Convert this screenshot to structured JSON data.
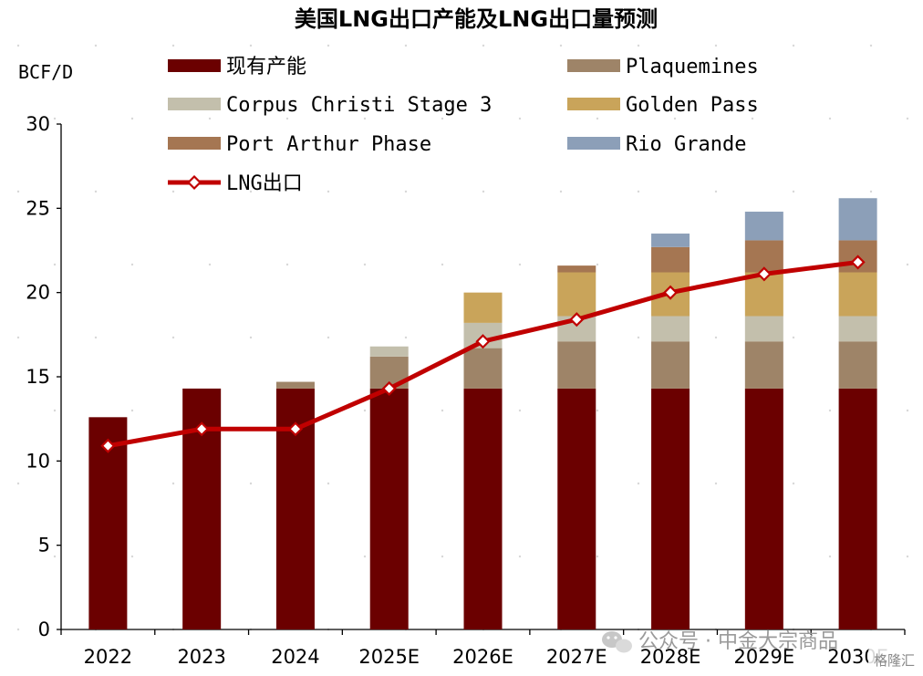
{
  "chart_data": {
    "type": "bar",
    "stacked": true,
    "title": "美国LNG出口产能及LNG出口量预测",
    "unit_label": "BCF/D",
    "categories": [
      "2022",
      "2023",
      "2024",
      "2025E",
      "2026E",
      "2027E",
      "2028E",
      "2029E",
      "2030E"
    ],
    "ylim": [
      0,
      30
    ],
    "yticks": [
      0,
      5,
      10,
      15,
      20,
      25,
      30
    ],
    "grid": false,
    "legend_placement": "top",
    "series": [
      {
        "name": "现有产能",
        "type": "bar",
        "color": "#6b0000",
        "values": [
          12.6,
          14.3,
          14.3,
          14.3,
          14.3,
          14.3,
          14.3,
          14.3,
          14.3
        ]
      },
      {
        "name": "Plaquemines",
        "type": "bar",
        "color": "#9e8468",
        "values": [
          0,
          0,
          0.4,
          1.9,
          2.4,
          2.8,
          2.8,
          2.8,
          2.8
        ]
      },
      {
        "name": "Corpus Christi Stage 3",
        "type": "bar",
        "color": "#c3bfac",
        "values": [
          0,
          0,
          0,
          0.6,
          1.5,
          1.5,
          1.5,
          1.5,
          1.5
        ]
      },
      {
        "name": "Golden Pass",
        "type": "bar",
        "color": "#c9a45a",
        "values": [
          0,
          0,
          0,
          0,
          1.8,
          2.6,
          2.6,
          2.6,
          2.6
        ]
      },
      {
        "name": "Port Arthur Phase",
        "type": "bar",
        "color": "#a57652",
        "values": [
          0,
          0,
          0,
          0,
          0,
          0.4,
          1.5,
          1.9,
          1.9
        ]
      },
      {
        "name": "Rio Grande",
        "type": "bar",
        "color": "#8c9fb8",
        "values": [
          0,
          0,
          0,
          0,
          0,
          0,
          0.8,
          1.7,
          2.5
        ]
      },
      {
        "name": "LNG出口",
        "type": "line",
        "color": "#c00000",
        "values": [
          10.9,
          11.9,
          11.9,
          14.3,
          17.1,
          18.4,
          20.0,
          21.1,
          21.8
        ]
      }
    ]
  },
  "watermark": {
    "text": "公众号 · 中金大宗商品",
    "badge": "格隆汇"
  }
}
